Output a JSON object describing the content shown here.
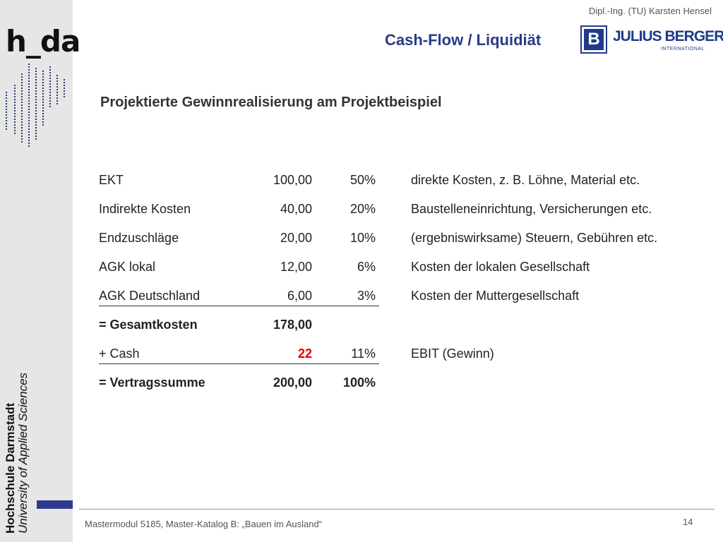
{
  "header": {
    "author": "Dipl.-Ing. (TU) Karsten Hensel",
    "title": "Cash-Flow / Liquidiät",
    "partner_logo": {
      "letter": "B",
      "name": "JULIUS BERGER",
      "sub": "INTERNATIONAL"
    }
  },
  "sidebar": {
    "logo_text": "h_da",
    "institution_name": "Hochschule Darmstadt",
    "institution_subtitle": "University of Applied Sciences",
    "accent_color": "#2e3a8c"
  },
  "content": {
    "subtitle": "Projektierte Gewinnrealisierung am Projektbeispiel",
    "rows": [
      {
        "label": "EKT",
        "value": "100,00",
        "percent": "50%",
        "description": "direkte Kosten, z. B. Löhne, Material etc."
      },
      {
        "label": "Indirekte Kosten",
        "value": "40,00",
        "percent": "20%",
        "description": "Baustelleneinrichtung, Versicherungen etc."
      },
      {
        "label": "Endzuschläge",
        "value": "20,00",
        "percent": "10%",
        "description": "(ergebniswirksame) Steuern, Gebühren etc."
      },
      {
        "label": "AGK lokal",
        "value": "12,00",
        "percent": "6%",
        "description": "Kosten der lokalen Gesellschaft"
      },
      {
        "label": "AGK Deutschland",
        "value": "6,00",
        "percent": "3%",
        "description": "Kosten der  Muttergesellschaft"
      },
      {
        "label": "= Gesamtkosten",
        "value": "178,00",
        "percent": "",
        "description": ""
      },
      {
        "label": "+ Cash",
        "value": "22",
        "percent": "11%",
        "description": "EBIT  (Gewinn)"
      },
      {
        "label": "= Vertragssumme",
        "value": "200,00",
        "percent": "100%",
        "description": ""
      }
    ],
    "highlight_color": "#e00000"
  },
  "footer": {
    "text": "Mastermodul 5185, Master-Katalog B: „Bauen im Ausland“",
    "page_number": "14"
  }
}
